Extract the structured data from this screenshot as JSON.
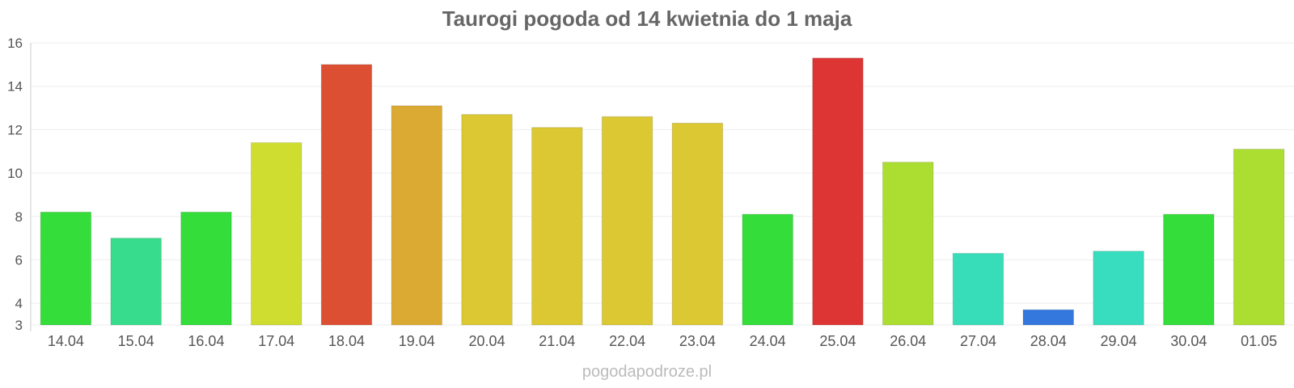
{
  "chart_data": {
    "type": "bar",
    "title": "Taurogi pogoda od 14 kwietnia do 1 maja",
    "xlabel": "",
    "ylabel": "",
    "ylim": [
      3,
      16
    ],
    "yticks": [
      3,
      4,
      6,
      8,
      10,
      12,
      14,
      16
    ],
    "grid": true,
    "categories": [
      "14.04",
      "15.04",
      "16.04",
      "17.04",
      "18.04",
      "19.04",
      "20.04",
      "21.04",
      "22.04",
      "23.04",
      "24.04",
      "25.04",
      "26.04",
      "27.04",
      "28.04",
      "29.04",
      "30.04",
      "01.05"
    ],
    "values": [
      8.2,
      7.0,
      8.2,
      11.4,
      15.0,
      13.1,
      12.7,
      12.1,
      12.6,
      12.3,
      8.1,
      15.3,
      10.5,
      6.3,
      3.7,
      6.4,
      8.1,
      11.1
    ],
    "colors": [
      "#34dd3a",
      "#37dd8c",
      "#34dd3a",
      "#cfdd31",
      "#dd4f33",
      "#dbaa33",
      "#dbc833",
      "#dbc833",
      "#dbc833",
      "#dbc833",
      "#34dd3a",
      "#dd3533",
      "#acdd31",
      "#37ddb9",
      "#3478dd",
      "#37ddbe",
      "#34dd3a",
      "#acdd31"
    ]
  },
  "watermark": "pogodapodroze.pl"
}
